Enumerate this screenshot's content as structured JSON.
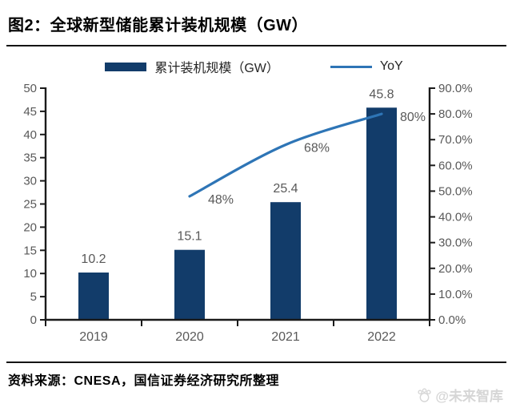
{
  "title": "图2：全球新型储能累计装机规模（GW）",
  "legend": {
    "bar_label": "累计装机规模（GW）",
    "line_label": "YoY"
  },
  "source": "资料来源：CNESA，国信证券经济研究所整理",
  "watermark": "@未来智库",
  "colors": {
    "bar": "#123c6a",
    "line": "#2e75b6",
    "axis": "#1a1a1a",
    "tick_text": "#595959",
    "legend_text": "#262626",
    "watermark": "#d6d6d6"
  },
  "chart_data": {
    "type": "bar+line",
    "title": "全球新型储能累计装机规模（GW）",
    "categories": [
      "2019",
      "2020",
      "2021",
      "2022"
    ],
    "series": [
      {
        "name": "累计装机规模（GW）",
        "type": "bar",
        "axis": "left",
        "values": [
          10.2,
          15.1,
          25.4,
          45.8
        ],
        "labels": [
          "10.2",
          "15.1",
          "25.4",
          "45.8"
        ]
      },
      {
        "name": "YoY",
        "type": "line",
        "axis": "right",
        "values": [
          null,
          48,
          68,
          80
        ],
        "labels": [
          null,
          "48%",
          "68%",
          "80%"
        ]
      }
    ],
    "left_axis": {
      "min": 0,
      "max": 50,
      "step": 5,
      "tick_labels": [
        "50",
        "45",
        "40",
        "35",
        "30",
        "25",
        "20",
        "15",
        "10",
        "5",
        "0"
      ]
    },
    "right_axis": {
      "min": 0,
      "max": 90,
      "step": 10,
      "tick_labels": [
        "90.0%",
        "80.0%",
        "70.0%",
        "60.0%",
        "50.0%",
        "40.0%",
        "30.0%",
        "20.0%",
        "10.0%",
        "0.0%"
      ]
    },
    "grid": false,
    "legend_position": "top"
  }
}
